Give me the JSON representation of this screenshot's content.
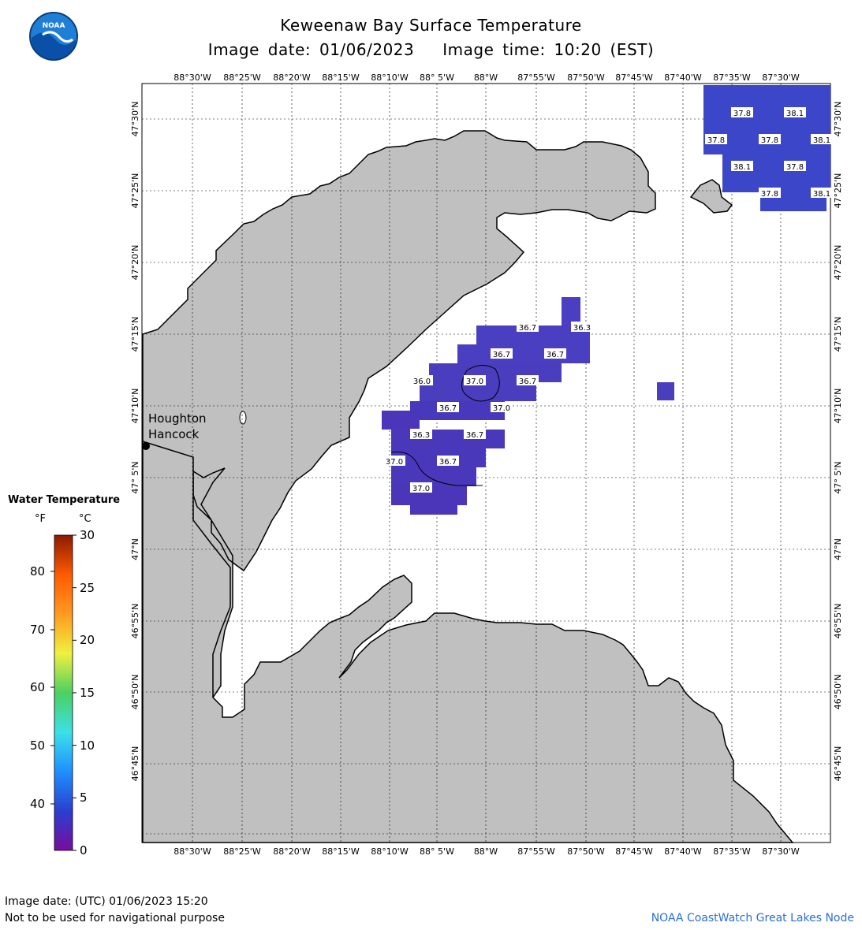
{
  "header": {
    "title": "Keweenaw Bay Surface Temperature",
    "image_date_label": "Image date: 01/06/2023",
    "image_time_label": "Image time: 10:20 (EST)"
  },
  "logo": {
    "text": "NOAA",
    "icon": "noaa-logo-icon"
  },
  "map": {
    "lon_labels": [
      "88°30'W",
      "88°25'W",
      "88°20'W",
      "88°15'W",
      "88°10'W",
      "88° 5'W",
      "88°W",
      "87°55'W",
      "87°50'W",
      "87°45'W",
      "87°40'W",
      "87°35'W",
      "87°30'W"
    ],
    "lat_labels": [
      "47°30'N",
      "47°25'N",
      "47°20'N",
      "47°15'N",
      "47°10'N",
      "47° 5'N",
      "47°N",
      "46°55'N",
      "46°50'N",
      "46°45'N"
    ],
    "city": {
      "line1": "Houghton",
      "line2": "Hancock"
    },
    "land_color": "#c0c0c0",
    "water_color": "#ffffff",
    "values": [
      "37.8",
      "38.1",
      "37.8",
      "37.8",
      "38.1",
      "37.8",
      "38.1",
      "37.8",
      "38.1",
      "36.7",
      "36.3",
      "36.7",
      "36.7",
      "36.0",
      "37.0",
      "36.7",
      "36.7",
      "37.0",
      "36.3",
      "36.7",
      "37.0",
      "36.7",
      "37.0"
    ]
  },
  "legend": {
    "title": "Water Temperature",
    "unit_f": "°F",
    "unit_c": "°C",
    "f_ticks": [
      "80",
      "70",
      "60",
      "50",
      "40"
    ],
    "c_ticks": [
      "30",
      "25",
      "20",
      "15",
      "10",
      "5",
      "0"
    ],
    "colors": [
      "#7a0d9c",
      "#2a3fd0",
      "#1e90ff",
      "#3ce0e8",
      "#4cd060",
      "#f0f040",
      "#ff9a20",
      "#ff5a00",
      "#8b1a00"
    ]
  },
  "footer": {
    "date_utc": "Image date: (UTC) 01/06/2023  15:20",
    "warning": "Not to be used for navigational purpose",
    "credit": "NOAA CoastWatch Great Lakes Node"
  }
}
